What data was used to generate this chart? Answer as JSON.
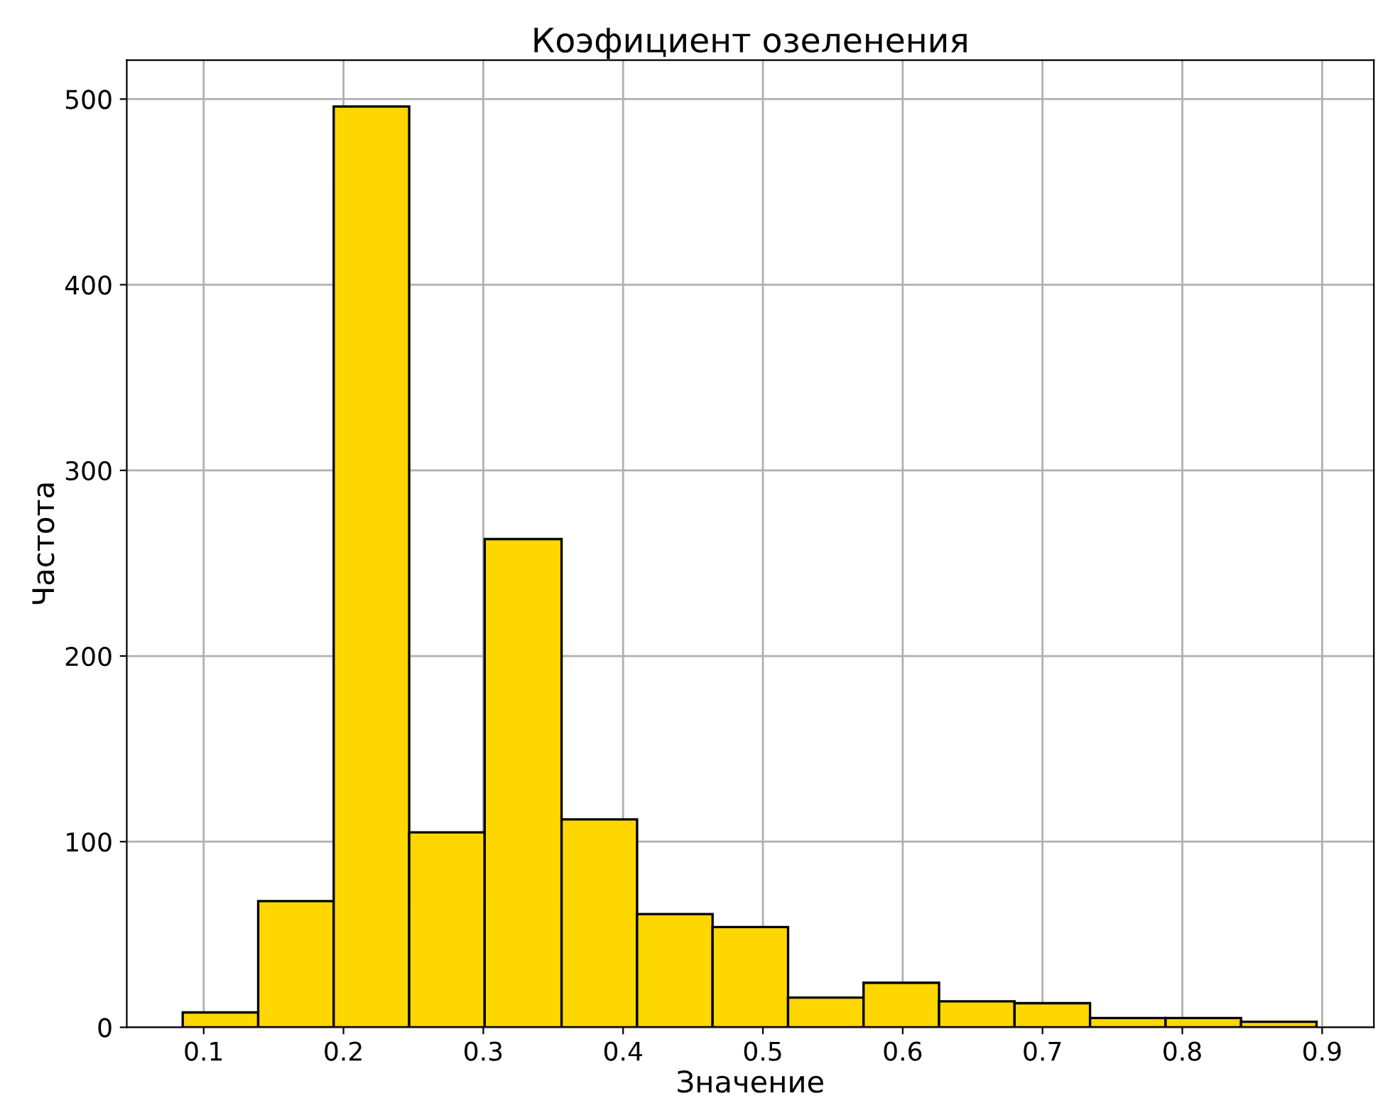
{
  "chart_data": {
    "type": "histogram",
    "title": "Коэфициент озеленения",
    "xlabel": "Значение",
    "ylabel": "Частота",
    "bins": [
      0.085,
      0.139,
      0.193,
      0.247,
      0.301,
      0.356,
      0.41,
      0.464,
      0.518,
      0.572,
      0.626,
      0.68,
      0.734,
      0.788,
      0.842,
      0.896
    ],
    "values": [
      8,
      68,
      496,
      105,
      263,
      112,
      61,
      54,
      16,
      24,
      14,
      13,
      5,
      5,
      3
    ],
    "color": "#ffd700",
    "xlim": [
      0.045,
      0.937
    ],
    "xticks": [
      0.1,
      0.2,
      0.3,
      0.4,
      0.5,
      0.6,
      0.7,
      0.8,
      0.9
    ],
    "ylim": [
      0,
      521
    ],
    "yticks": [
      0,
      100,
      200,
      300,
      400,
      500
    ],
    "grid": true
  }
}
